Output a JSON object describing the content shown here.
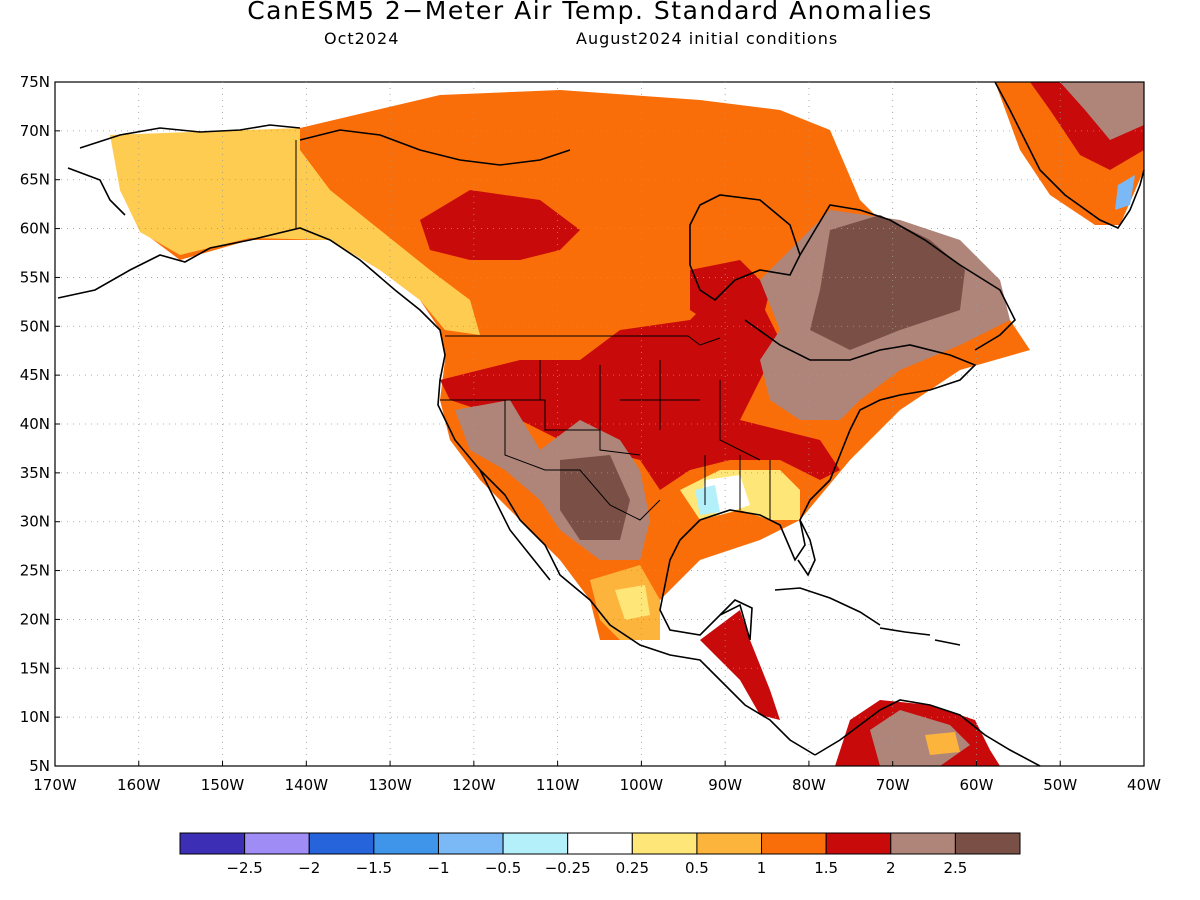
{
  "title": "CanESM5 2−Meter Air Temp. Standard Anomalies",
  "subtitle_left": "Oct2024",
  "subtitle_right": "August2024 initial conditions",
  "lat_labels": [
    "75N",
    "70N",
    "65N",
    "60N",
    "55N",
    "50N",
    "45N",
    "40N",
    "35N",
    "30N",
    "25N",
    "20N",
    "15N",
    "10N",
    "5N"
  ],
  "lon_labels": [
    "170W",
    "160W",
    "150W",
    "140W",
    "130W",
    "120W",
    "110W",
    "100W",
    "90W",
    "80W",
    "70W",
    "60W",
    "50W",
    "40W"
  ],
  "colorbar": {
    "colors": [
      "#3c2fb5",
      "#a08cf5",
      "#2664dc",
      "#3f95ea",
      "#7ab9f5",
      "#b4f0fa",
      "#ffffff",
      "#ffe678",
      "#fcb43c",
      "#fa6e0a",
      "#c80a0a",
      "#af857a",
      "#7a5046"
    ],
    "labels": [
      "−2.5",
      "−2",
      "−1.5",
      "−1",
      "−0.5",
      "−0.25",
      "0.25",
      "0.5",
      "1",
      "1.5",
      "2",
      "2.5"
    ]
  },
  "anomaly_regions": [
    {
      "region": "Alaska / Yukon",
      "anomaly": "0.5–1"
    },
    {
      "region": "Canadian Arctic & Prairies",
      "anomaly": "1–1.5"
    },
    {
      "region": "Central United States",
      "anomaly": "1.5–2"
    },
    {
      "region": "US Southwest & Mexico interior",
      "anomaly": ">2.5"
    },
    {
      "region": "Quebec / Labrador",
      "anomaly": ">2.5"
    },
    {
      "region": "Lower Mississippi Valley",
      "anomaly": "-0.5–0.25"
    },
    {
      "region": "Southern Greenland",
      "anomaly": "1.5–2.5"
    }
  ]
}
